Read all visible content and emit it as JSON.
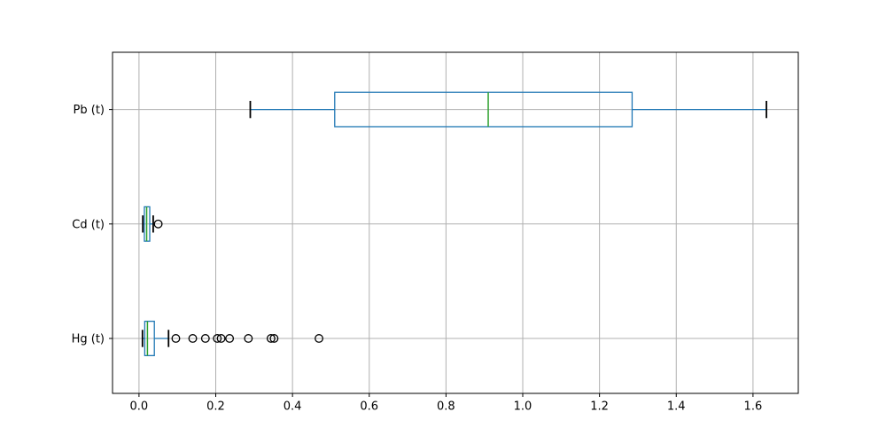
{
  "figure": {
    "background": "#ffffff",
    "title": ""
  },
  "chart_data": {
    "type": "boxplot",
    "orientation": "horizontal",
    "title": "",
    "xlabel": "",
    "ylabel": "",
    "grid": true,
    "legend": false,
    "xlim": [
      -0.069,
      1.718
    ],
    "ylim": [
      0.52,
      3.5
    ],
    "xtick_labels": [
      "0.0",
      "0.2",
      "0.4",
      "0.6",
      "0.8",
      "1.0",
      "1.2",
      "1.4",
      "1.6"
    ],
    "xtick_values": [
      0.0,
      0.2,
      0.4,
      0.6,
      0.8,
      1.0,
      1.2,
      1.4,
      1.6
    ],
    "box_width": 0.3,
    "series": [
      {
        "label": "Pb (t)",
        "position": 3,
        "whislo": 0.29,
        "q1": 0.51,
        "med": 0.91,
        "q3": 1.285,
        "whishi": 1.635,
        "fliers": []
      },
      {
        "label": "Cd (t)",
        "position": 2,
        "whislo": 0.01,
        "q1": 0.014,
        "med": 0.02,
        "q3": 0.028,
        "whishi": 0.037,
        "fliers": [
          0.05
        ]
      },
      {
        "label": "Hg (t)",
        "position": 1,
        "whislo": 0.009,
        "q1": 0.015,
        "med": 0.022,
        "q3": 0.04,
        "whishi": 0.077,
        "fliers": [
          0.096,
          0.14,
          0.173,
          0.204,
          0.214,
          0.236,
          0.285,
          0.344,
          0.352,
          0.469
        ]
      }
    ],
    "colors": {
      "box": "#1f77b4",
      "whisker": "#1f77b4",
      "cap": "#000000",
      "median": "#2ca02c",
      "flier": "#000000",
      "grid": "#b0b0b0",
      "spine": "#000000",
      "tick_label": "#000000"
    }
  }
}
